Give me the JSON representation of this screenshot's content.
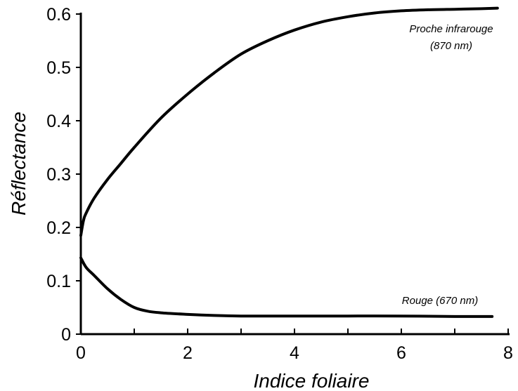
{
  "chart_data": {
    "type": "line",
    "title": "",
    "xlabel": "Indice foliaire",
    "ylabel": "Réflectance",
    "xlim": [
      0,
      8
    ],
    "ylim": [
      0,
      0.6
    ],
    "x_ticks": [
      0,
      2,
      4,
      6,
      8
    ],
    "x_tick_labels": [
      "0",
      "2",
      "4",
      "6",
      "8"
    ],
    "y_ticks": [
      0,
      0.1,
      0.2,
      0.3,
      0.4,
      0.5,
      0.6
    ],
    "y_tick_labels": [
      "0",
      "0.1",
      "0.2",
      "0.3",
      "0.4",
      "0.5",
      "0.6"
    ],
    "x_minor_ticks": [
      1,
      3,
      5,
      7
    ],
    "grid": false,
    "series": [
      {
        "name": "Proche infrarouge (870 nm)",
        "x": [
          0,
          0.05,
          0.1,
          0.25,
          0.5,
          0.75,
          1,
          1.5,
          2,
          2.5,
          3,
          3.5,
          4,
          4.5,
          5,
          5.5,
          6,
          6.5,
          7,
          7.5,
          7.8
        ],
        "y": [
          0.185,
          0.213,
          0.227,
          0.255,
          0.29,
          0.32,
          0.35,
          0.405,
          0.45,
          0.49,
          0.525,
          0.55,
          0.57,
          0.585,
          0.595,
          0.602,
          0.606,
          0.608,
          0.609,
          0.61,
          0.611
        ]
      },
      {
        "name": "Rouge (670 nm)",
        "x": [
          0,
          0.1,
          0.25,
          0.5,
          0.75,
          1,
          1.25,
          1.5,
          2,
          2.5,
          3,
          4,
          5,
          6,
          7,
          7.7
        ],
        "y": [
          0.143,
          0.125,
          0.11,
          0.085,
          0.065,
          0.05,
          0.043,
          0.04,
          0.037,
          0.035,
          0.034,
          0.034,
          0.034,
          0.034,
          0.033,
          0.033
        ]
      }
    ],
    "annotations": [
      {
        "line1": "Proche infrarouge",
        "line2": "(870 nm)"
      },
      {
        "line1": "Rouge (670 nm)"
      }
    ]
  }
}
